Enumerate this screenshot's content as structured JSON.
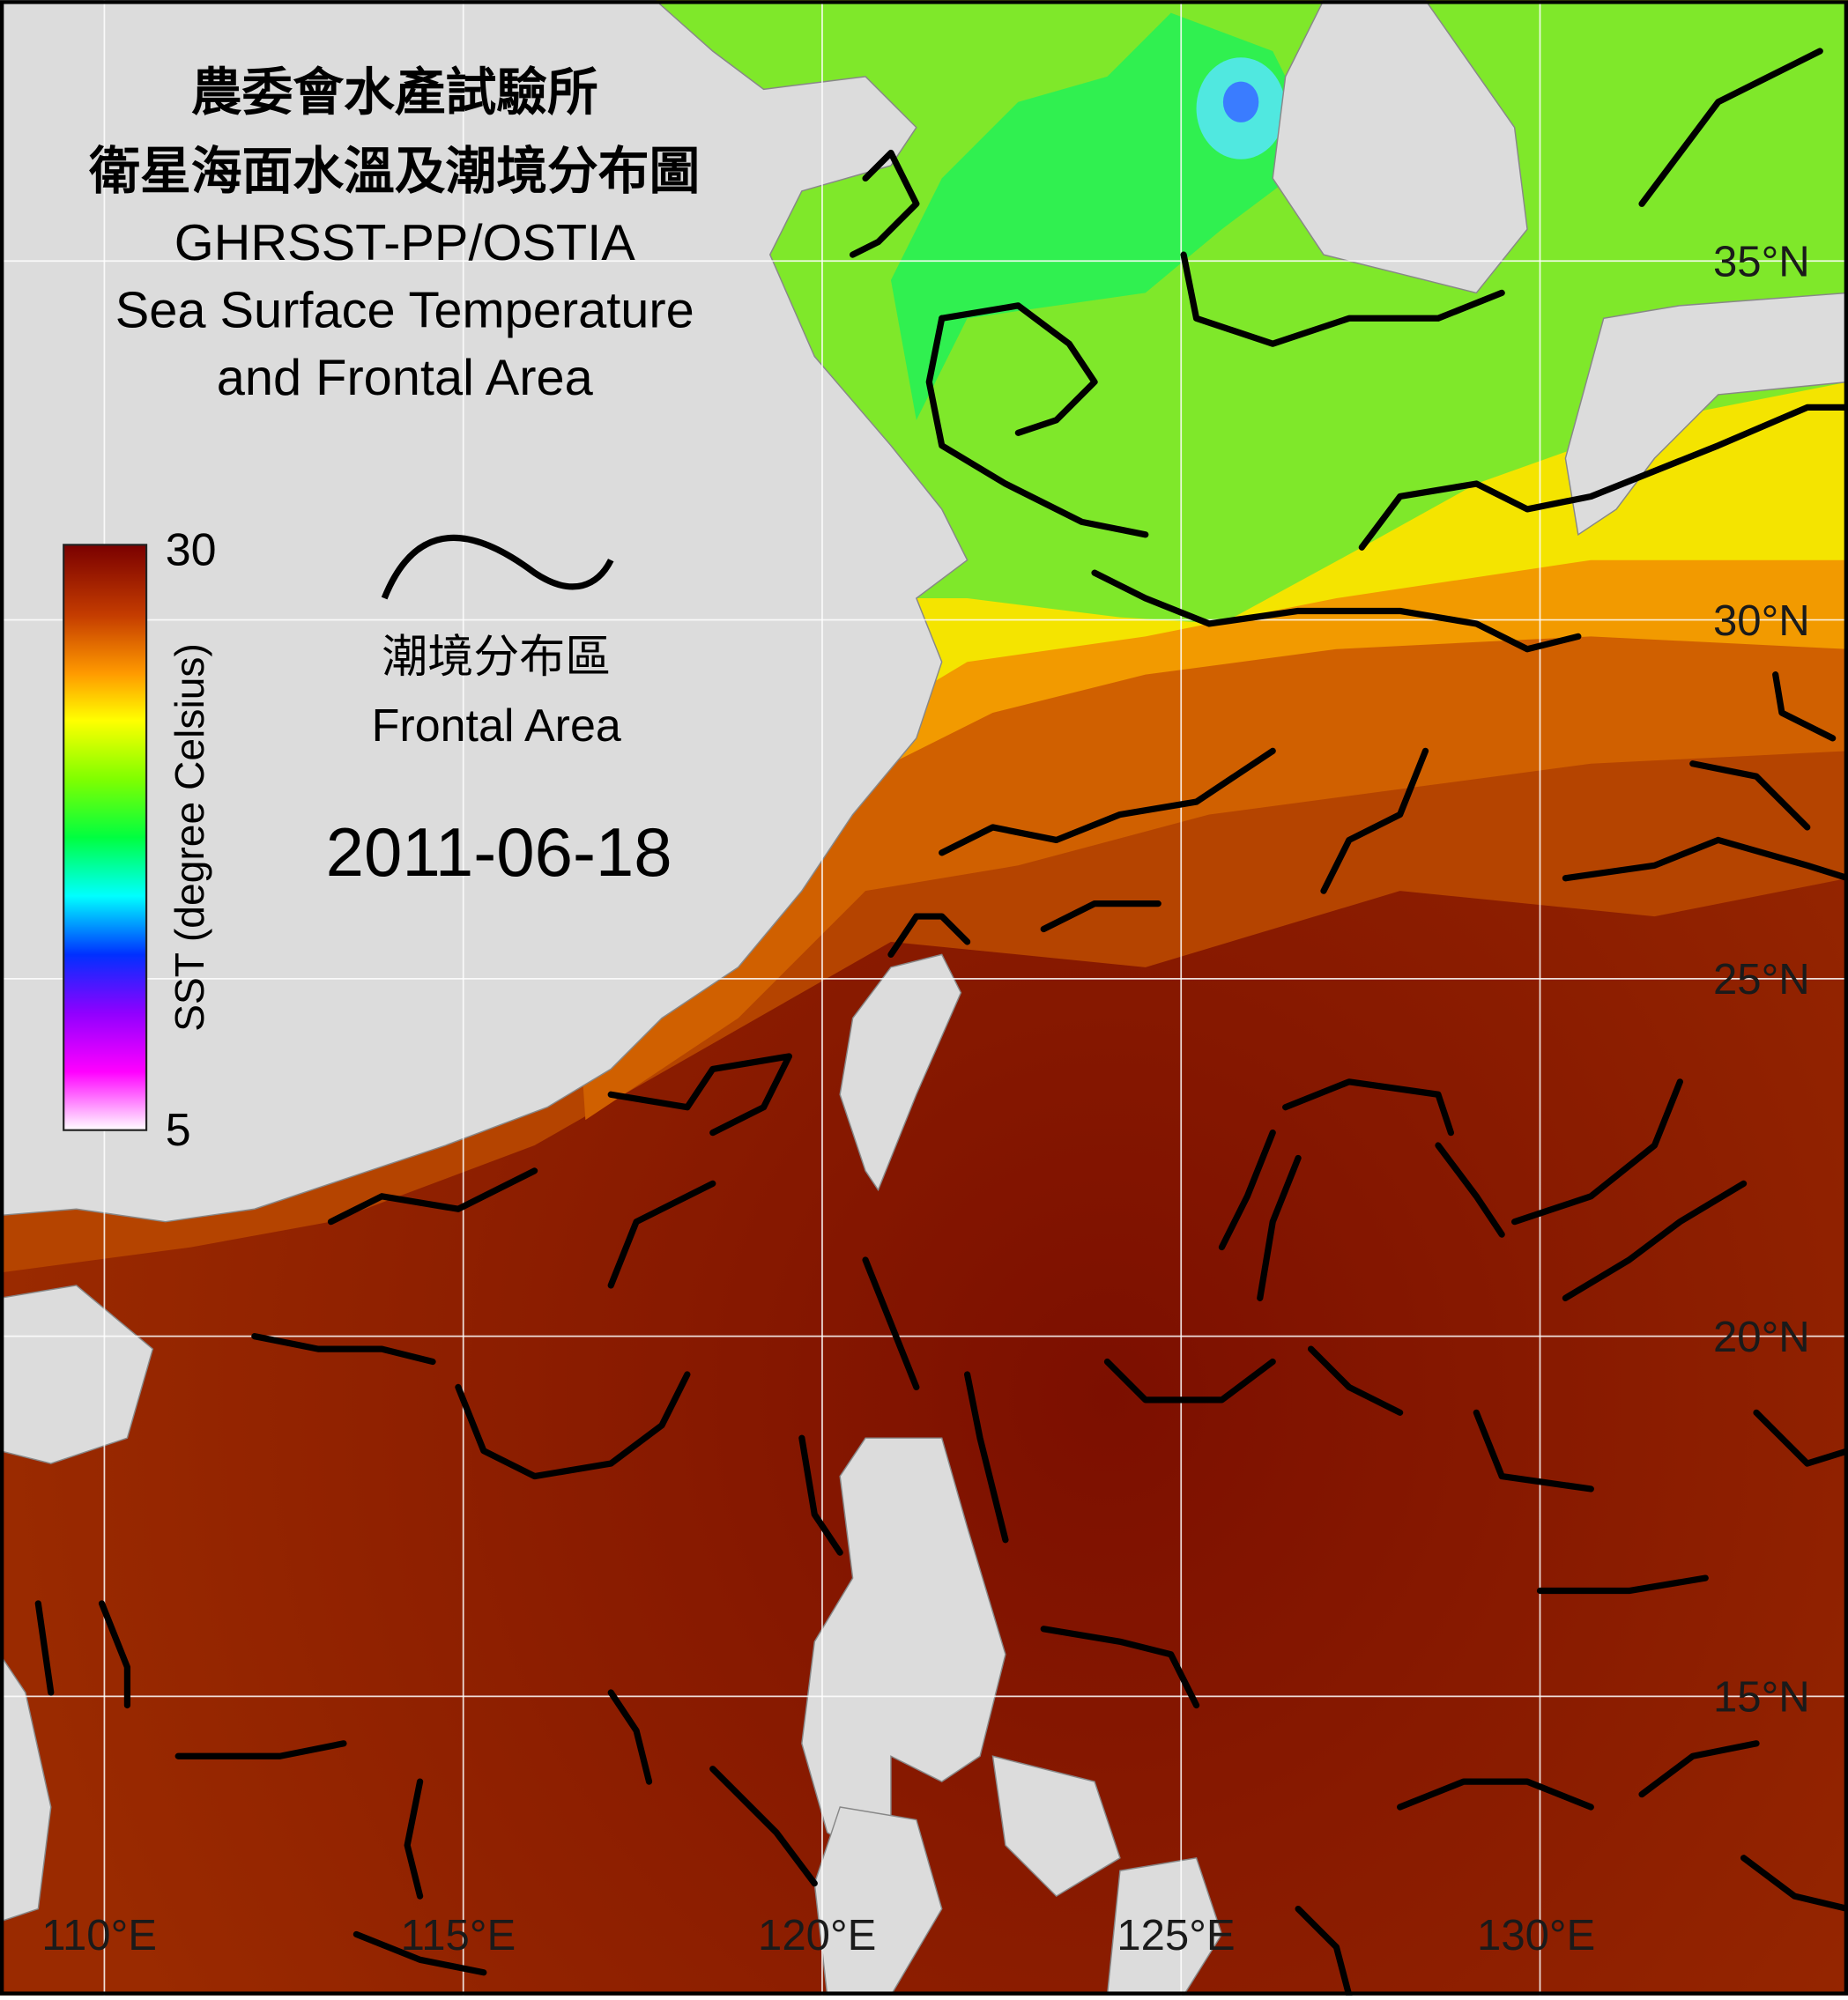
{
  "header": {
    "title_lines": [
      "農委會水產試驗所",
      "衛星海面水溫及潮境分布圖",
      "GHRSST-PP/OSTIA",
      "Sea Surface Temperature",
      "and Frontal Area"
    ]
  },
  "colorbar": {
    "max": 30,
    "min": 5,
    "label": "SST (degree Celsius)"
  },
  "legend": {
    "label_zh": "潮境分布區",
    "label_en": "Frontal Area"
  },
  "date": "2011-06-18",
  "longitude_labels": [
    "110°E",
    "115°E",
    "120°E",
    "125°E",
    "130°E"
  ],
  "latitude_labels": [
    "35°N",
    "30°N",
    "25°N",
    "20°N",
    "15°N"
  ]
}
